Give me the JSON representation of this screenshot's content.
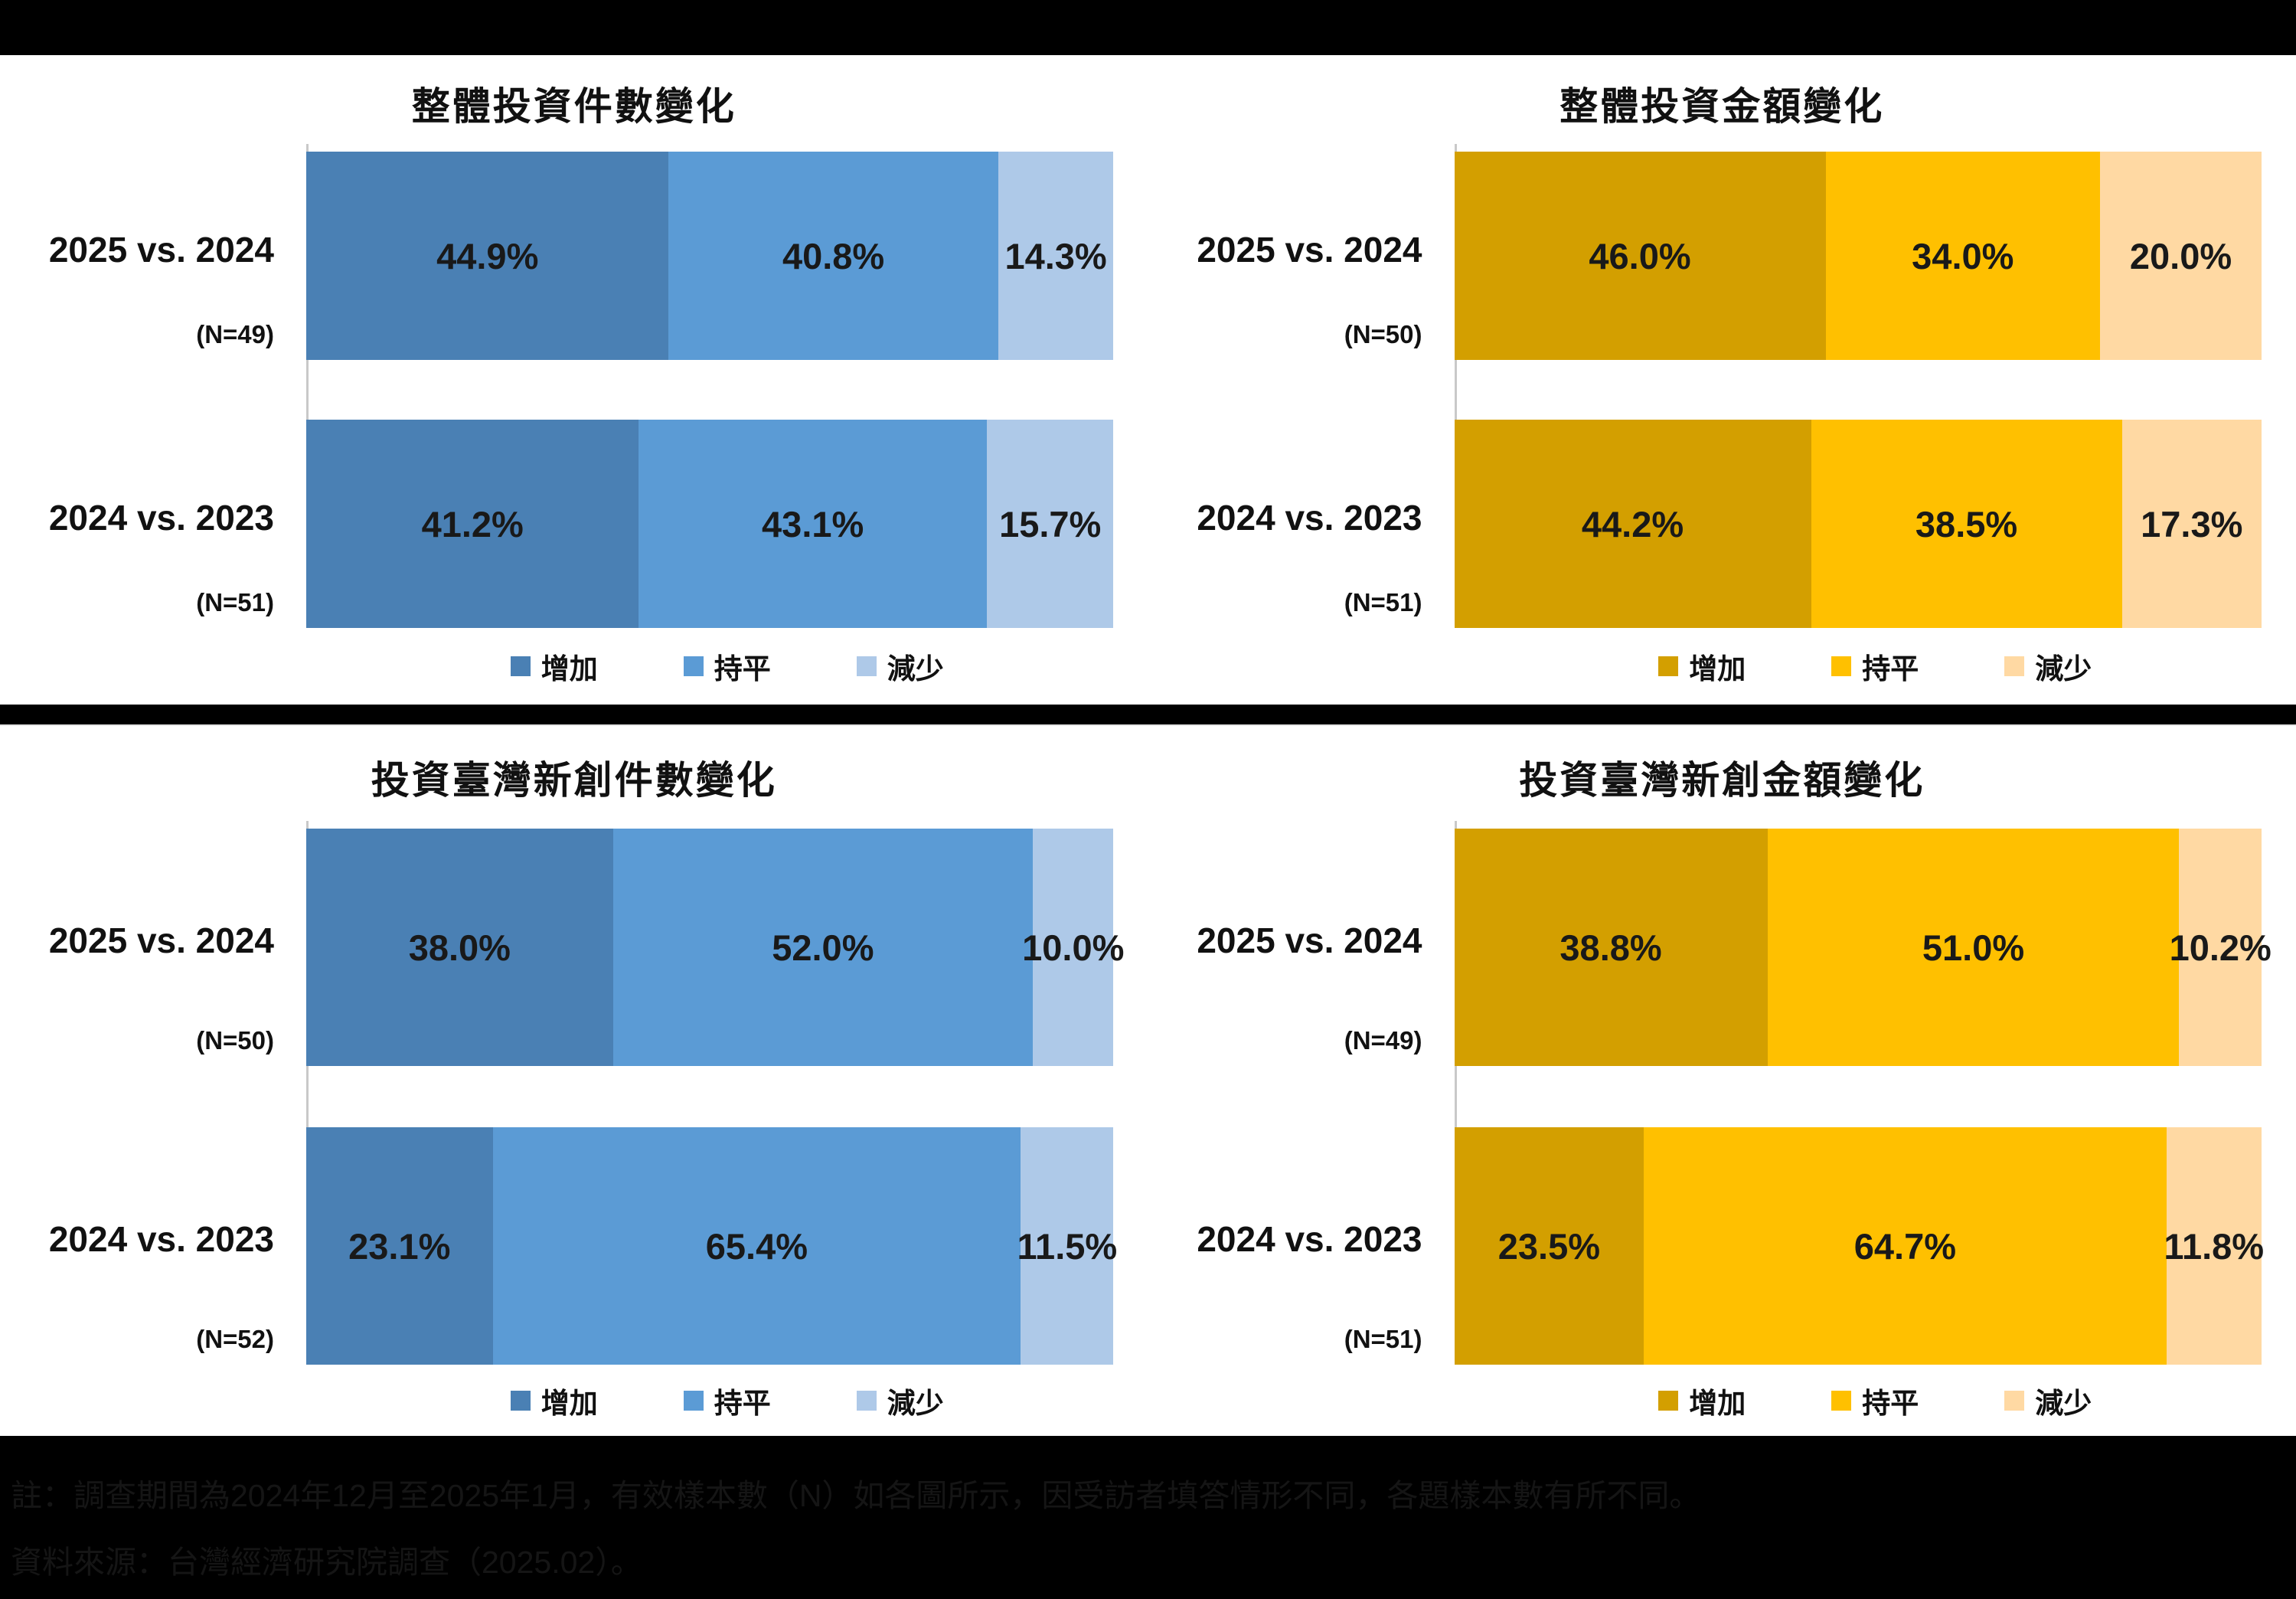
{
  "page": {
    "background": "#000000",
    "footnote": {
      "line1": "註：調查期間為2024年12月至2025年1月，有效樣本數（N）如各圖所示，因受訪者填答情形不同，各題樣本數有所不同。",
      "line2": "資料來源：台灣經濟研究院調查（2025.02）。"
    }
  },
  "colors": {
    "palettes": {
      "blue": [
        "#4A80B4",
        "#5B9BD5",
        "#AEC9E8"
      ],
      "gold": [
        "#D39F00",
        "#FFC000",
        "#FFD9A3"
      ]
    },
    "title_text": "#111111",
    "value_text": "#191919",
    "axis_line": "#C9C9C9",
    "panel_background": "#FFFFFF",
    "page_background": "#000000"
  },
  "chart_data": [
    {
      "id": "overall-deal-count",
      "panel": "top",
      "type": "bar",
      "orientation": "horizontal-stacked",
      "title": "整體投資件數變化",
      "palette": "blue",
      "xlim": [
        0,
        100
      ],
      "grid": false,
      "legend": [
        "增加",
        "持平",
        "減少"
      ],
      "legend_position": "bottom",
      "rows": [
        {
          "label": "2025 vs. 2024",
          "n": "(N=49)",
          "values": [
            44.9,
            40.8,
            14.3
          ],
          "labels": [
            "44.9%",
            "40.8%",
            "14.3%"
          ]
        },
        {
          "label": "2024 vs. 2023",
          "n": "(N=51)",
          "values": [
            41.2,
            43.1,
            15.7
          ],
          "labels": [
            "41.2%",
            "43.1%",
            "15.7%"
          ]
        }
      ]
    },
    {
      "id": "overall-deal-amount",
      "panel": "top",
      "type": "bar",
      "orientation": "horizontal-stacked",
      "title": "整體投資金額變化",
      "palette": "gold",
      "xlim": [
        0,
        100
      ],
      "grid": false,
      "legend": [
        "增加",
        "持平",
        "減少"
      ],
      "legend_position": "bottom",
      "rows": [
        {
          "label": "2025 vs. 2024",
          "n": "(N=50)",
          "values": [
            46.0,
            34.0,
            20.0
          ],
          "labels": [
            "46.0%",
            "34.0%",
            "20.0%"
          ]
        },
        {
          "label": "2024 vs. 2023",
          "n": "(N=51)",
          "values": [
            44.2,
            38.5,
            17.3
          ],
          "labels": [
            "44.2%",
            "38.5%",
            "17.3%"
          ]
        }
      ]
    },
    {
      "id": "taiwan-startup-deal-count",
      "panel": "bottom",
      "type": "bar",
      "orientation": "horizontal-stacked",
      "title": "投資臺灣新創件數變化",
      "palette": "blue",
      "xlim": [
        0,
        100
      ],
      "grid": false,
      "legend": [
        "增加",
        "持平",
        "減少"
      ],
      "legend_position": "bottom",
      "rows": [
        {
          "label": "2025 vs. 2024",
          "n": "(N=50)",
          "values": [
            38.0,
            52.0,
            10.0
          ],
          "labels": [
            "38.0%",
            "52.0%",
            "10.0%"
          ]
        },
        {
          "label": "2024 vs. 2023",
          "n": "(N=52)",
          "values": [
            23.1,
            65.4,
            11.5
          ],
          "labels": [
            "23.1%",
            "65.4%",
            "11.5%"
          ]
        }
      ]
    },
    {
      "id": "taiwan-startup-deal-amount",
      "panel": "bottom",
      "type": "bar",
      "orientation": "horizontal-stacked",
      "title": "投資臺灣新創金額變化",
      "palette": "gold",
      "xlim": [
        0,
        100
      ],
      "grid": false,
      "legend": [
        "增加",
        "持平",
        "減少"
      ],
      "legend_position": "bottom",
      "rows": [
        {
          "label": "2025 vs. 2024",
          "n": "(N=49)",
          "values": [
            38.8,
            51.0,
            10.2
          ],
          "labels": [
            "38.8%",
            "51.0%",
            "10.2%"
          ]
        },
        {
          "label": "2024 vs. 2023",
          "n": "(N=51)",
          "values": [
            23.5,
            64.7,
            11.8
          ],
          "labels": [
            "23.5%",
            "64.7%",
            "11.8%"
          ]
        }
      ]
    }
  ]
}
